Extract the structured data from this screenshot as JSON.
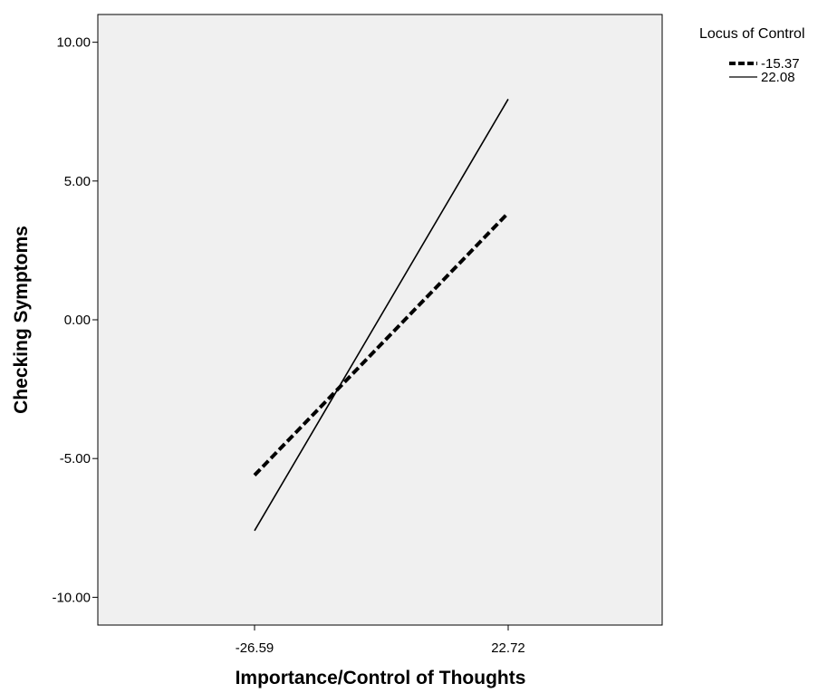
{
  "chart_data": {
    "type": "line",
    "xlabel": "Importance/Control of Thoughts",
    "ylabel": "Checking Symptoms",
    "x": [
      "-26.59",
      "22.72"
    ],
    "ylim": [
      -11.0,
      11.0
    ],
    "yticks": [
      "10.00",
      "5.00",
      "0.00",
      "-5.00",
      "-10.00"
    ],
    "ytick_values": [
      10,
      5,
      0,
      -5,
      -10
    ],
    "grid": false,
    "legend": {
      "title": "Locus of Control",
      "placement": "top-right, outside plot"
    },
    "series": [
      {
        "name": "-15.37",
        "style": "dashed",
        "values": [
          -5.6,
          3.85
        ]
      },
      {
        "name": "22.08",
        "style": "solid",
        "values": [
          -7.6,
          7.95
        ]
      }
    ],
    "colors": {
      "plot_background": "#f0f0f0",
      "line": "#000000"
    }
  }
}
